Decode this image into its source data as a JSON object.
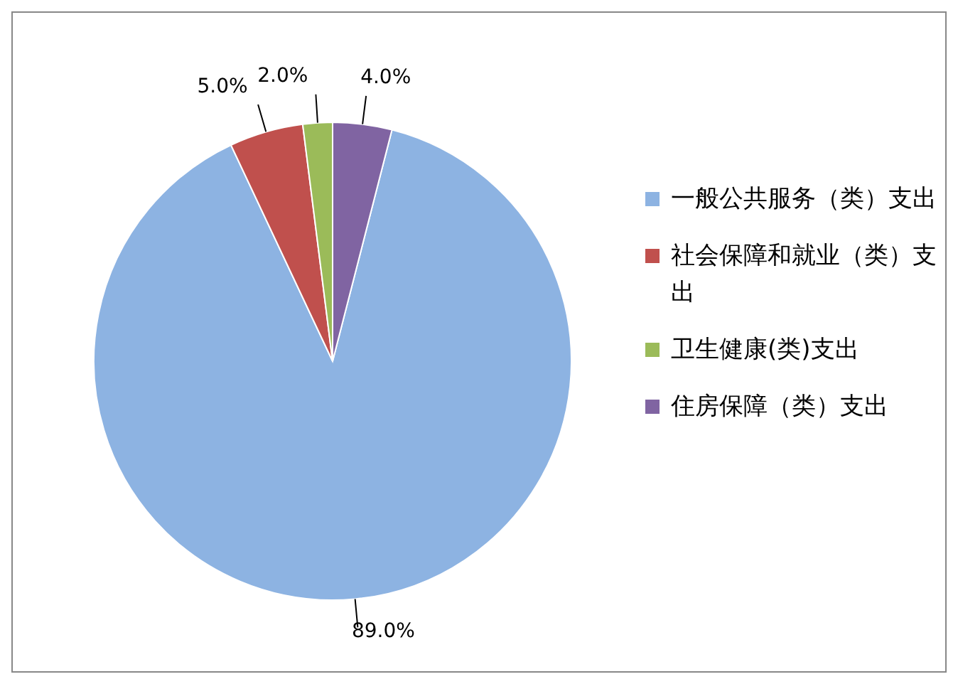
{
  "chart_data": {
    "type": "pie",
    "categories": [
      "一般公共服务（类）支出",
      "社会保障和就业（类）支出",
      "卫生健康(类)支出",
      "住房保障（类）支出"
    ],
    "values": [
      89,
      5,
      2,
      4
    ],
    "colors": [
      "#8db3e2",
      "#c0504d",
      "#9bbb59",
      "#8064a2"
    ],
    "value_labels": [
      "89.0%",
      "5.0%",
      "2.0%",
      "4.0%"
    ],
    "legend": "right"
  }
}
